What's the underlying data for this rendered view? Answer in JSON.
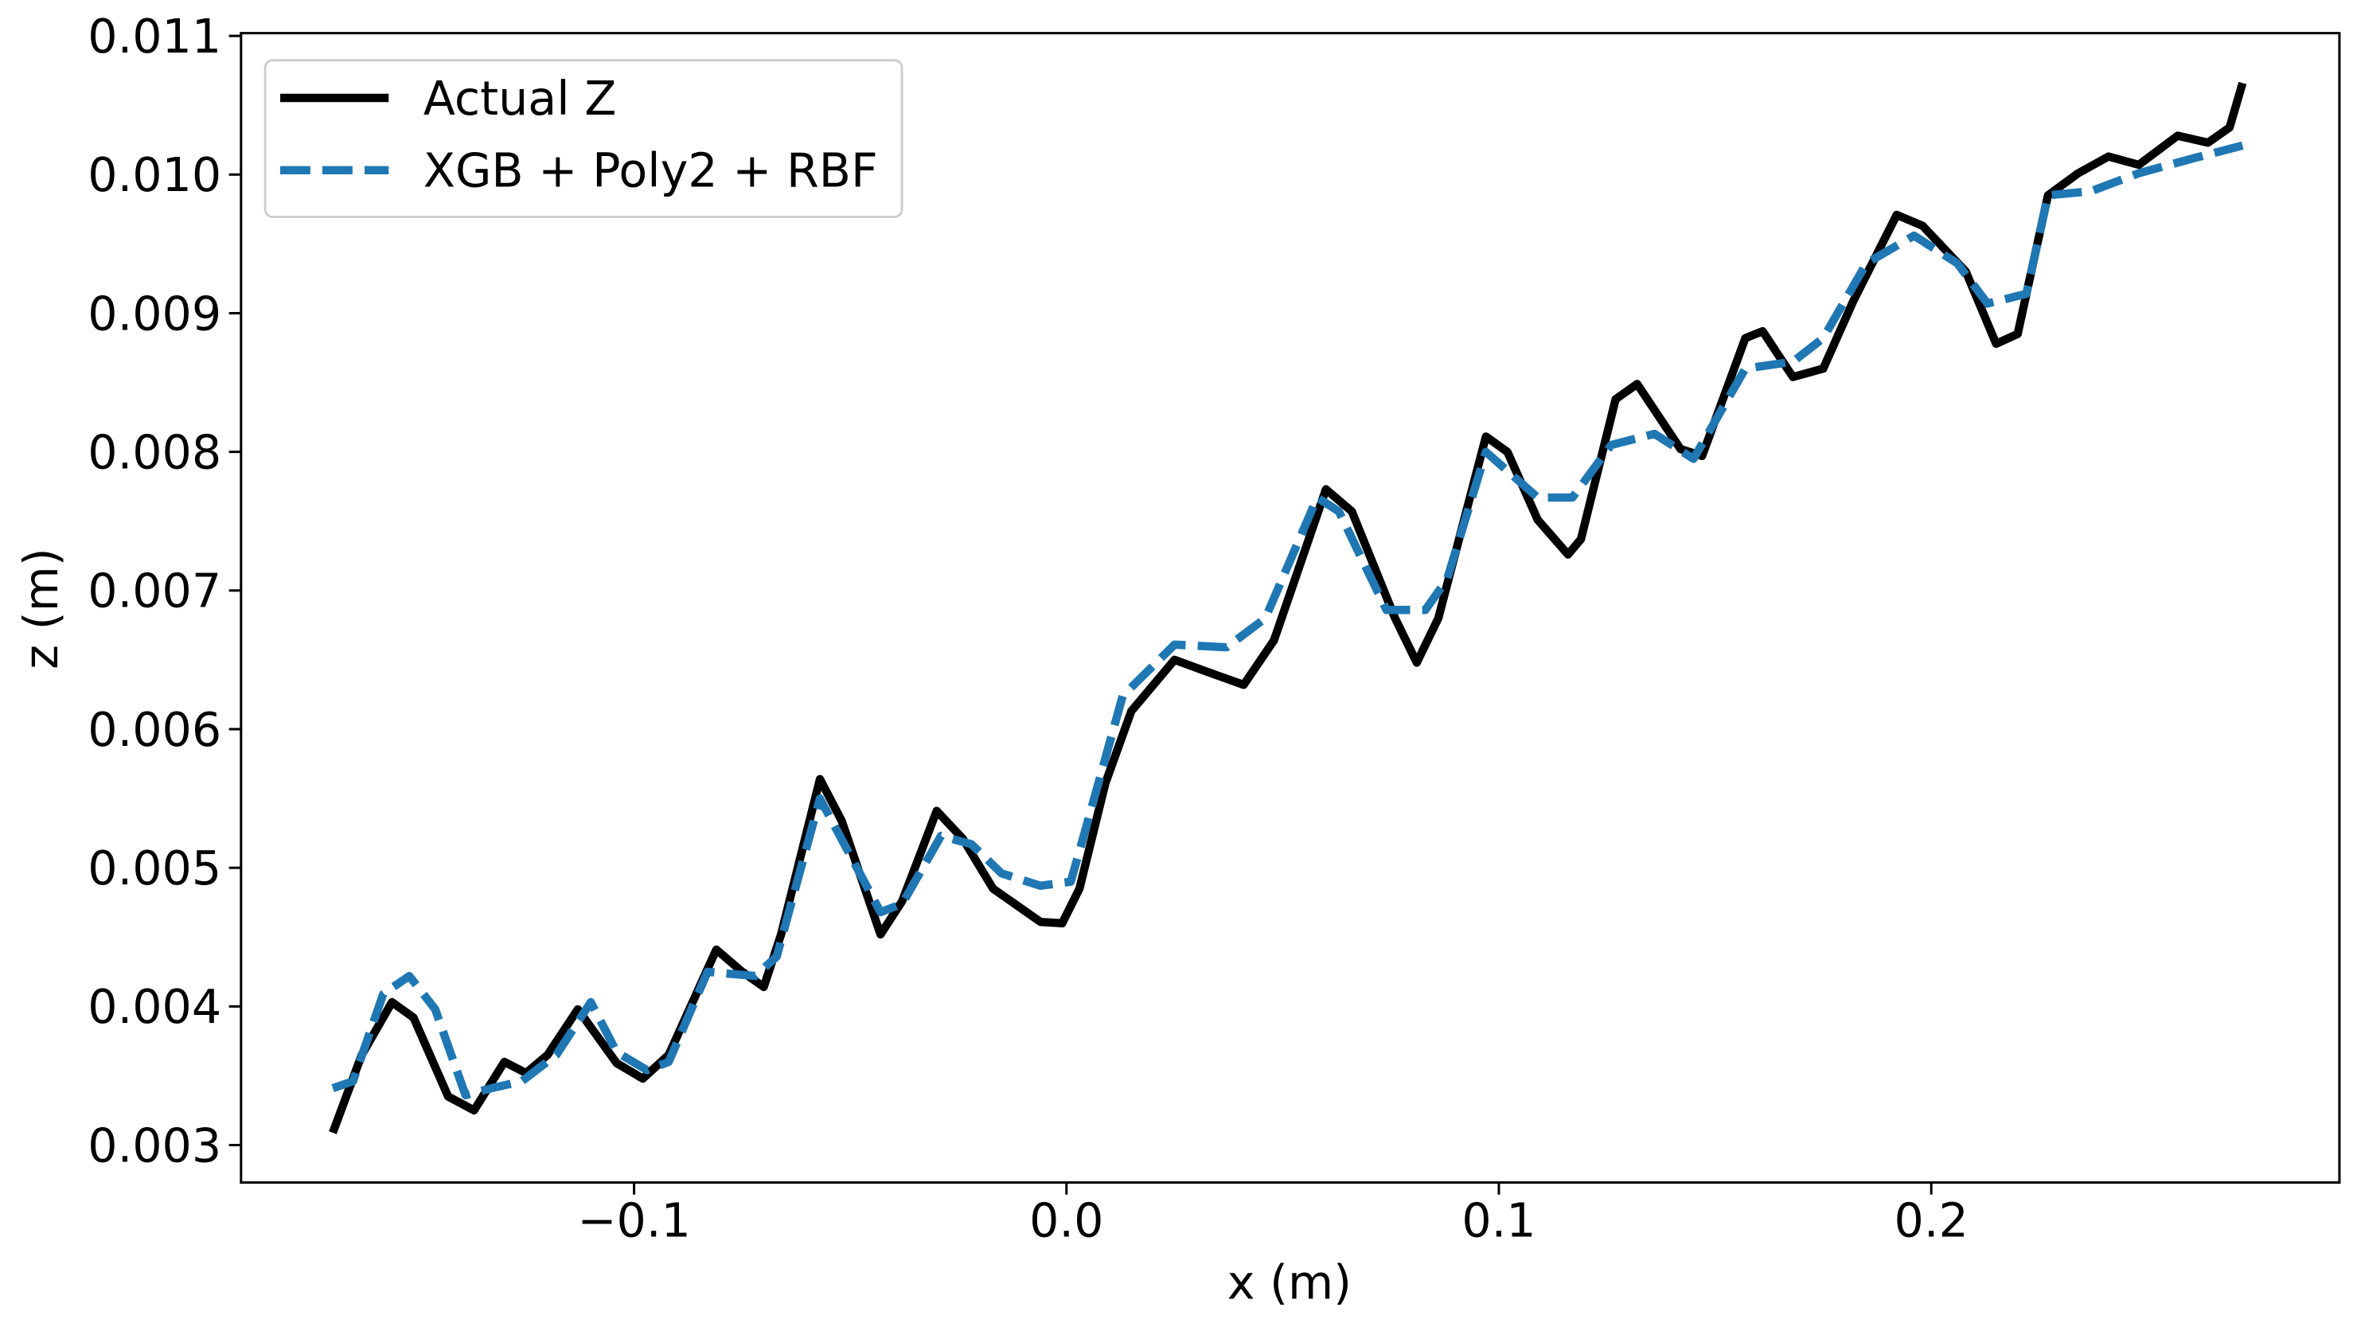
{
  "chart_data": {
    "type": "line",
    "xlabel": "x (m)",
    "ylabel": "z (m)",
    "xlim": [
      -0.1909,
      0.2944
    ],
    "ylim": [
      0.00273,
      0.01102
    ],
    "xticks": [
      {
        "value": -0.1,
        "label": "−0.1"
      },
      {
        "value": 0,
        "label": "0.0"
      },
      {
        "value": 0.1,
        "label": "0.1"
      },
      {
        "value": 0.2,
        "label": "0.2"
      }
    ],
    "yticks": [
      0.003,
      0.004,
      0.005,
      0.006,
      0.007,
      0.008,
      0.009,
      {
        "value": 0.01,
        "label": "0.010"
      },
      0.011
    ],
    "legend": "upper left",
    "series": [
      {
        "name": "Actual Z",
        "color": "#000000",
        "dash": "solid",
        "x": [
          -0.1697,
          -0.163,
          -0.156,
          -0.151,
          -0.143,
          -0.137,
          -0.13,
          -0.125,
          -0.12,
          -0.113,
          -0.104,
          -0.098,
          -0.092,
          -0.081,
          -0.075,
          -0.07,
          -0.066,
          -0.057,
          -0.052,
          -0.043,
          -0.038,
          -0.03,
          -0.024,
          -0.017,
          -0.006,
          -0.001,
          0.003,
          0.009,
          0.015,
          0.025,
          0.032,
          0.041,
          0.048,
          0.06,
          0.066,
          0.076,
          0.081,
          0.086,
          0.097,
          0.102,
          0.109,
          0.116,
          0.119,
          0.127,
          0.132,
          0.142,
          0.147,
          0.157,
          0.161,
          0.168,
          0.175,
          0.182,
          0.192,
          0.198,
          0.208,
          0.215,
          0.22,
          0.227,
          0.234,
          0.241,
          0.248,
          0.257,
          0.264,
          0.269,
          0.272
        ],
        "values": [
          0.00309,
          0.00365,
          0.00403,
          0.00392,
          0.00335,
          0.00325,
          0.0036,
          0.00352,
          0.00365,
          0.00398,
          0.00359,
          0.00348,
          0.00365,
          0.00441,
          0.00425,
          0.00414,
          0.00452,
          0.00564,
          0.00534,
          0.00452,
          0.00476,
          0.00541,
          0.00521,
          0.00485,
          0.00461,
          0.0046,
          0.00485,
          0.00561,
          0.00613,
          0.0065,
          0.00642,
          0.00632,
          0.00664,
          0.00773,
          0.00757,
          0.0068,
          0.00648,
          0.0068,
          0.00811,
          0.008,
          0.00751,
          0.00726,
          0.00737,
          0.00838,
          0.00849,
          0.00802,
          0.00797,
          0.00882,
          0.00887,
          0.00854,
          0.0086,
          0.00909,
          0.00971,
          0.00963,
          0.0093,
          0.00878,
          0.00885,
          0.00985,
          0.01001,
          0.01013,
          0.01007,
          0.01028,
          0.01023,
          0.01034,
          0.01066
        ]
      },
      {
        "name": "XGB + Poly2 + RBF",
        "color": "#1f77b4",
        "dash": "dashed",
        "x": [
          -0.1697,
          -0.165,
          -0.158,
          -0.152,
          -0.146,
          -0.139,
          -0.133,
          -0.126,
          -0.118,
          -0.11,
          -0.104,
          -0.097,
          -0.092,
          -0.083,
          -0.072,
          -0.067,
          -0.057,
          -0.05,
          -0.043,
          -0.038,
          -0.029,
          -0.022,
          -0.015,
          -0.006,
          0.001,
          0.004,
          0.013,
          0.025,
          0.037,
          0.046,
          0.058,
          0.063,
          0.074,
          0.083,
          0.088,
          0.097,
          0.109,
          0.117,
          0.126,
          0.136,
          0.145,
          0.157,
          0.168,
          0.175,
          0.185,
          0.196,
          0.206,
          0.213,
          0.222,
          0.227,
          0.237,
          0.248,
          0.261,
          0.272
        ],
        "values": [
          0.00341,
          0.00346,
          0.00409,
          0.00422,
          0.00398,
          0.00336,
          0.00341,
          0.00346,
          0.00365,
          0.00403,
          0.00367,
          0.00354,
          0.0036,
          0.00425,
          0.00422,
          0.00436,
          0.0055,
          0.00509,
          0.00468,
          0.00474,
          0.00523,
          0.00517,
          0.00496,
          0.00487,
          0.0049,
          0.00523,
          0.00624,
          0.00661,
          0.00659,
          0.0068,
          0.00767,
          0.00757,
          0.00686,
          0.00686,
          0.00708,
          0.008,
          0.00767,
          0.00767,
          0.00805,
          0.00813,
          0.00795,
          0.0086,
          0.00865,
          0.00882,
          0.00936,
          0.00956,
          0.00936,
          0.00907,
          0.00914,
          0.00985,
          0.00988,
          0.01001,
          0.01012,
          0.01021
        ]
      }
    ]
  }
}
